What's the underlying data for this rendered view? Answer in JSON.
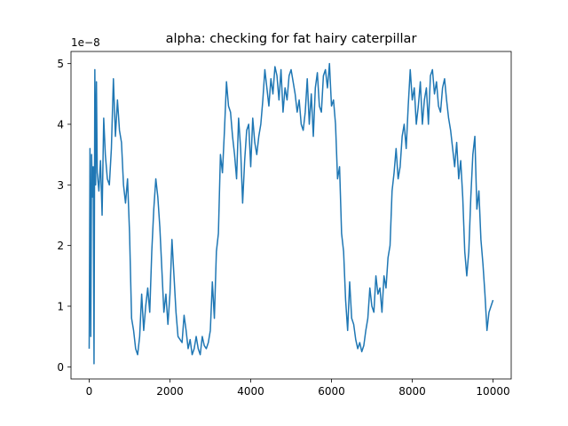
{
  "chart_data": {
    "type": "line",
    "title": "alpha: checking for fat hairy caterpillar",
    "xlabel": "",
    "ylabel": "",
    "y_offset_label": "1e−8",
    "xlim": [
      -450,
      10450
    ],
    "ylim": [
      -0.2,
      5.2
    ],
    "xticks": [
      0,
      2000,
      4000,
      6000,
      8000,
      10000
    ],
    "xtick_labels": [
      "0",
      "2000",
      "4000",
      "6000",
      "8000",
      "10000"
    ],
    "yticks": [
      0,
      1,
      2,
      3,
      4,
      5
    ],
    "ytick_labels": [
      "0",
      "1",
      "2",
      "3",
      "4",
      "5"
    ],
    "grid": false,
    "series": [
      {
        "color": "#1f77b4",
        "x": [
          0,
          20,
          40,
          60,
          80,
          100,
          120,
          140,
          160,
          180,
          200,
          240,
          280,
          320,
          360,
          400,
          450,
          500,
          550,
          600,
          650,
          700,
          750,
          800,
          850,
          900,
          950,
          1000,
          1050,
          1100,
          1150,
          1200,
          1250,
          1300,
          1350,
          1400,
          1450,
          1500,
          1550,
          1600,
          1650,
          1700,
          1750,
          1800,
          1850,
          1900,
          1950,
          2000,
          2050,
          2100,
          2150,
          2200,
          2250,
          2300,
          2350,
          2400,
          2450,
          2500,
          2550,
          2600,
          2650,
          2700,
          2750,
          2800,
          2850,
          2900,
          2950,
          3000,
          3050,
          3100,
          3150,
          3200,
          3250,
          3300,
          3350,
          3400,
          3450,
          3500,
          3550,
          3600,
          3650,
          3700,
          3750,
          3800,
          3850,
          3900,
          3950,
          4000,
          4050,
          4100,
          4150,
          4200,
          4250,
          4300,
          4350,
          4400,
          4450,
          4500,
          4550,
          4600,
          4650,
          4700,
          4750,
          4800,
          4850,
          4900,
          4950,
          5000,
          5050,
          5100,
          5150,
          5200,
          5250,
          5300,
          5350,
          5400,
          5450,
          5500,
          5550,
          5600,
          5650,
          5700,
          5750,
          5800,
          5850,
          5900,
          5950,
          6000,
          6050,
          6100,
          6150,
          6200,
          6250,
          6300,
          6350,
          6400,
          6450,
          6500,
          6550,
          6600,
          6650,
          6700,
          6750,
          6800,
          6850,
          6900,
          6950,
          7000,
          7050,
          7100,
          7150,
          7200,
          7250,
          7300,
          7350,
          7400,
          7450,
          7500,
          7550,
          7600,
          7650,
          7700,
          7750,
          7800,
          7850,
          7900,
          7950,
          8000,
          8050,
          8100,
          8150,
          8200,
          8250,
          8300,
          8350,
          8400,
          8450,
          8500,
          8550,
          8600,
          8650,
          8700,
          8750,
          8800,
          8850,
          8900,
          8950,
          9000,
          9050,
          9100,
          9150,
          9200,
          9250,
          9300,
          9350,
          9400,
          9450,
          9500,
          9550,
          9600,
          9650,
          9700,
          9750,
          9800,
          9850,
          9900,
          9950,
          10000
        ],
        "y": [
          0.3,
          3.6,
          0.5,
          3.5,
          2.8,
          3.3,
          0.05,
          4.9,
          3.0,
          4.7,
          3.2,
          2.9,
          3.4,
          2.5,
          4.1,
          3.5,
          3.1,
          3.0,
          3.6,
          4.75,
          3.8,
          4.4,
          3.9,
          3.7,
          3.0,
          2.7,
          3.1,
          2.2,
          0.8,
          0.6,
          0.3,
          0.2,
          0.5,
          1.2,
          0.6,
          1.0,
          1.3,
          0.9,
          1.9,
          2.6,
          3.1,
          2.8,
          2.3,
          1.6,
          0.9,
          1.2,
          0.7,
          1.2,
          2.1,
          1.5,
          0.9,
          0.5,
          0.45,
          0.4,
          0.85,
          0.6,
          0.3,
          0.45,
          0.2,
          0.3,
          0.5,
          0.3,
          0.2,
          0.5,
          0.35,
          0.3,
          0.4,
          0.6,
          1.4,
          0.8,
          1.9,
          2.2,
          3.5,
          3.2,
          3.9,
          4.7,
          4.3,
          4.2,
          3.8,
          3.5,
          3.1,
          4.1,
          3.6,
          2.7,
          3.4,
          3.9,
          4.0,
          3.3,
          4.1,
          3.7,
          3.5,
          3.8,
          4.0,
          4.4,
          4.9,
          4.6,
          4.3,
          4.75,
          4.5,
          4.95,
          4.8,
          4.4,
          4.9,
          4.2,
          4.6,
          4.4,
          4.8,
          4.9,
          4.7,
          4.5,
          4.2,
          4.4,
          4.0,
          3.9,
          4.2,
          4.75,
          4.0,
          4.5,
          3.8,
          4.6,
          4.85,
          4.3,
          4.2,
          4.8,
          4.9,
          4.6,
          5.0,
          4.3,
          4.4,
          4.0,
          3.1,
          3.3,
          2.2,
          1.9,
          1.1,
          0.6,
          1.4,
          0.8,
          0.7,
          0.45,
          0.3,
          0.4,
          0.25,
          0.35,
          0.6,
          0.8,
          1.3,
          1.0,
          0.9,
          1.5,
          1.2,
          1.3,
          0.9,
          1.5,
          1.3,
          1.8,
          2.0,
          2.9,
          3.2,
          3.6,
          3.1,
          3.3,
          3.8,
          4.0,
          3.6,
          4.3,
          4.9,
          4.4,
          4.6,
          4.0,
          4.3,
          4.7,
          4.0,
          4.4,
          4.6,
          4.0,
          4.8,
          4.9,
          4.5,
          4.7,
          4.3,
          4.2,
          4.6,
          4.75,
          4.4,
          4.1,
          3.9,
          3.6,
          3.3,
          3.7,
          3.1,
          3.4,
          2.8,
          1.9,
          1.5,
          1.9,
          2.8,
          3.5,
          3.8,
          2.6,
          2.9,
          2.1,
          1.7,
          1.2,
          0.6,
          0.9,
          1.0,
          1.1
        ]
      }
    ]
  }
}
